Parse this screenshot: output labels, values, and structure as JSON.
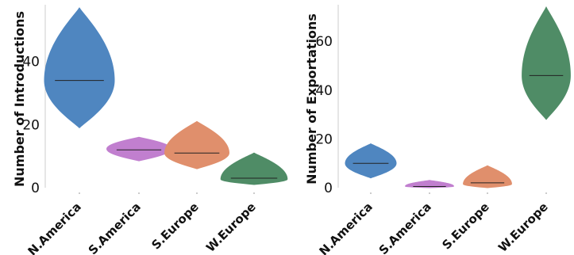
{
  "chart_data": [
    {
      "type": "violin",
      "title": "",
      "xlabel": "",
      "ylabel": "Number of Introductions",
      "ylim": [
        0,
        58
      ],
      "yticks": [
        0,
        20,
        40
      ],
      "grid": false,
      "categories": [
        "N.America",
        "S.America",
        "S.Europe",
        "W.Europe"
      ],
      "colors": [
        "#4f86c0",
        "#c17fcf",
        "#e08f6c",
        "#4f8c66"
      ],
      "violins": [
        {
          "category": "N.America",
          "min": 19,
          "max": 57,
          "median": 34,
          "peak": 34,
          "max_halfwidth_frac": 1.0
        },
        {
          "category": "S.America",
          "min": 8.5,
          "max": 16,
          "median": 12,
          "peak": 12.3,
          "max_halfwidth_frac": 0.92
        },
        {
          "category": "S.Europe",
          "min": 6,
          "max": 21,
          "median": 11,
          "peak": 11,
          "max_halfwidth_frac": 0.92
        },
        {
          "category": "W.Europe",
          "min": 1,
          "max": 11,
          "median": 3,
          "peak": 2.7,
          "max_halfwidth_frac": 0.95
        }
      ]
    },
    {
      "type": "violin",
      "title": "",
      "xlabel": "",
      "ylabel": "Number of Exportations",
      "ylim": [
        0,
        75
      ],
      "yticks": [
        0,
        20,
        40,
        60
      ],
      "grid": false,
      "categories": [
        "N.America",
        "S.America",
        "S.Europe",
        "W.Europe"
      ],
      "colors": [
        "#4f86c0",
        "#c17fcf",
        "#e08f6c",
        "#4f8c66"
      ],
      "violins": [
        {
          "category": "N.America",
          "min": 4,
          "max": 18,
          "median": 10,
          "peak": 10,
          "max_halfwidth_frac": 1.0
        },
        {
          "category": "S.America",
          "min": 0,
          "max": 3,
          "median": 0.5,
          "peak": 0.6,
          "max_halfwidth_frac": 0.95
        },
        {
          "category": "S.Europe",
          "min": 0,
          "max": 9,
          "median": 2,
          "peak": 1.5,
          "max_halfwidth_frac": 0.95
        },
        {
          "category": "W.Europe",
          "min": 28,
          "max": 74,
          "median": 46,
          "peak": 46,
          "max_halfwidth_frac": 0.95
        }
      ]
    }
  ]
}
